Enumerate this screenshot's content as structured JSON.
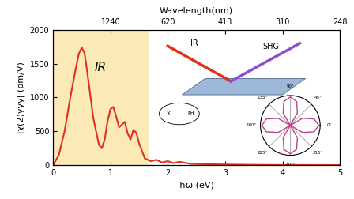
{
  "chart_data": {
    "type": "line",
    "x_label": "ħω (eV)",
    "y_label": "|χ(2)yyy| (pm/V)",
    "x2_label": "Wavelength(nm)",
    "x": [
      0.0,
      0.1,
      0.2,
      0.3,
      0.4,
      0.45,
      0.5,
      0.55,
      0.6,
      0.7,
      0.8,
      0.85,
      0.9,
      0.95,
      1.0,
      1.05,
      1.1,
      1.15,
      1.2,
      1.25,
      1.3,
      1.35,
      1.4,
      1.45,
      1.5,
      1.6,
      1.7,
      1.8,
      1.9,
      2.0,
      2.1,
      2.2,
      2.4,
      2.6,
      3.0,
      3.5,
      4.0,
      4.5,
      5.0
    ],
    "values": [
      0,
      150,
      500,
      1000,
      1450,
      1650,
      1740,
      1650,
      1350,
      700,
      300,
      250,
      380,
      650,
      830,
      860,
      720,
      560,
      600,
      640,
      470,
      380,
      520,
      480,
      320,
      100,
      60,
      80,
      40,
      60,
      30,
      50,
      20,
      15,
      10,
      5,
      3,
      2,
      1
    ],
    "color": "#e0301e",
    "xlim": [
      0,
      5
    ],
    "xticks": [
      0,
      1,
      2,
      3,
      4,
      5
    ],
    "ylim": [
      0,
      2000
    ],
    "yticks": [
      0,
      500,
      1000,
      1500,
      2000
    ],
    "x2ticks": [
      {
        "value": 1,
        "label": "1240"
      },
      {
        "value": 2,
        "label": "620"
      },
      {
        "value": 3,
        "label": "413"
      },
      {
        "value": 4,
        "label": "310"
      },
      {
        "value": 5,
        "label": "248"
      }
    ],
    "shaded_region": {
      "x": [
        0,
        1.65
      ],
      "color": "#fce9b8",
      "label": "IR"
    },
    "annotations": [
      "IR",
      "SHG",
      "Pd",
      "X"
    ],
    "polar_inset": {
      "angles": [
        0,
        15,
        30,
        45,
        60,
        75,
        90,
        105,
        120,
        135,
        150,
        165,
        180,
        195,
        210,
        225,
        240,
        255,
        270,
        285,
        300,
        315,
        330,
        345,
        360
      ],
      "radius": [
        1,
        0.87,
        0.5,
        0,
        0.5,
        0.87,
        1,
        0.87,
        0.5,
        0,
        0.5,
        0.87,
        1,
        0.87,
        0.5,
        0,
        0.5,
        0.87,
        1,
        0.87,
        0.5,
        0,
        0.5,
        0.87,
        1
      ],
      "color": "#c0408a",
      "angle_ticks": [
        0,
        45,
        90,
        135,
        180,
        225,
        270,
        315
      ],
      "angle_labels": [
        "0°",
        "45°",
        "90°",
        "135°",
        "180°",
        "225°",
        "270°",
        "315°"
      ]
    }
  }
}
